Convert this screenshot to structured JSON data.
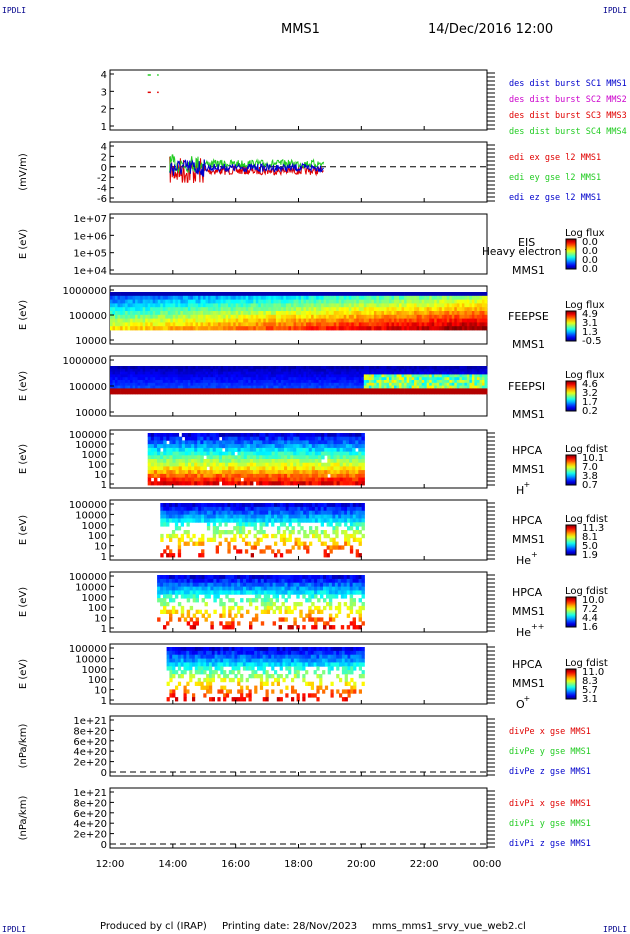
{
  "corner_label": "IPDLI",
  "header": {
    "spacecraft": "MMS1",
    "datetime": "14/Dec/2016 12:00"
  },
  "footer": {
    "produced_by": "Produced by cl (IRAP)",
    "printing_date": "Printing date: 28/Nov/2023",
    "filename": "mms_mms1_srvy_vue_web2.cl"
  },
  "colors": {
    "red": "#e00000",
    "green": "#22cc22",
    "blue": "#0000cc",
    "magenta": "#cc00cc"
  },
  "chart_data": {
    "type": "line",
    "x_ticks": [
      "12:00",
      "14:00",
      "16:00",
      "18:00",
      "20:00",
      "22:00",
      "00:00"
    ],
    "x_range_hours": [
      12,
      24
    ],
    "panels": [
      {
        "kind": "flags",
        "yticks": [
          "4",
          "3",
          "2",
          "1"
        ],
        "ylabel": "",
        "series": [
          {
            "name": "des dist burst SC1 MMS1",
            "color": "#0000cc",
            "level": 4,
            "segments": []
          },
          {
            "name": "des dist burst SC2 MMS2",
            "color": "#cc00cc",
            "level": 3,
            "segments": []
          },
          {
            "name": "des dist burst SC3 MMS3",
            "color": "#e00000",
            "level": 3,
            "segments": [
              [
                13.2,
                13.3
              ],
              [
                13.5,
                13.55
              ]
            ]
          },
          {
            "name": "des dist burst SC4 MMS4",
            "color": "#22cc22",
            "level": 4,
            "segments": [
              [
                13.2,
                13.3
              ],
              [
                13.5,
                13.55
              ]
            ]
          }
        ]
      },
      {
        "kind": "efield",
        "yticks": [
          "4",
          "2",
          "0",
          "-2",
          "-4",
          "-6"
        ],
        "ylabel": "(mV/m)",
        "active_hours": [
          13.9,
          18.8
        ],
        "series": [
          {
            "name": "edi ex gse l2 MMS1",
            "color": "#e00000"
          },
          {
            "name": "edi ey gse l2 MMS1",
            "color": "#22cc22"
          },
          {
            "name": "edi ez gse l2 MMS1",
            "color": "#0000cc"
          }
        ]
      },
      {
        "kind": "spec_empty",
        "yticks": [
          "1e+07",
          "1e+06",
          "1e+05",
          "1e+04"
        ],
        "ylabel": "E (eV)",
        "labels": [
          "EIS",
          "MMS1"
        ],
        "overlay": "Heavy electron to",
        "cbar_title": "Log flux",
        "cbar_ticks": [
          "0.0",
          "0.0",
          "0.0",
          "0.0"
        ]
      },
      {
        "kind": "feeps_e",
        "yticks": [
          "1000000",
          "100000",
          "10000"
        ],
        "ylabel": "E (eV)",
        "labels": [
          "FEEPSE",
          "MMS1"
        ],
        "cbar_title": "Log flux",
        "cbar_ticks": [
          "4.9",
          "3.1",
          "1.3",
          "-0.5"
        ]
      },
      {
        "kind": "feeps_i",
        "yticks": [
          "1000000",
          "100000",
          "10000"
        ],
        "ylabel": "E (eV)",
        "labels": [
          "FEEPSI",
          "MMS1"
        ],
        "cbar_title": "Log flux",
        "cbar_ticks": [
          "4.6",
          "3.2",
          "1.7",
          "0.2"
        ]
      },
      {
        "kind": "hpca",
        "yticks": [
          "100000",
          "10000",
          "1000",
          "100",
          "10",
          "1"
        ],
        "ylabel": "E (eV)",
        "labels": [
          "HPCA",
          "MMS1"
        ],
        "species": "H",
        "species_sup": "+",
        "cbar_title": "Log fdist",
        "cbar_ticks": [
          "10.1",
          "7.0",
          "3.8",
          "0.7"
        ],
        "start_hour": 13.2
      },
      {
        "kind": "hpca",
        "yticks": [
          "100000",
          "10000",
          "1000",
          "100",
          "10",
          "1"
        ],
        "ylabel": "E (eV)",
        "labels": [
          "HPCA",
          "MMS1"
        ],
        "species": "He",
        "species_sup": "+",
        "cbar_title": "Log fdist",
        "cbar_ticks": [
          "11.3",
          "8.1",
          "5.0",
          "1.9"
        ],
        "start_hour": 13.6
      },
      {
        "kind": "hpca",
        "yticks": [
          "100000",
          "10000",
          "1000",
          "100",
          "10",
          "1"
        ],
        "ylabel": "E (eV)",
        "labels": [
          "HPCA",
          "MMS1"
        ],
        "species": "He",
        "species_sup": "++",
        "cbar_title": "Log fdist",
        "cbar_ticks": [
          "10.0",
          "7.2",
          "4.4",
          "1.6"
        ],
        "start_hour": 13.5
      },
      {
        "kind": "hpca",
        "yticks": [
          "100000",
          "10000",
          "1000",
          "100",
          "10",
          "1"
        ],
        "ylabel": "E (eV)",
        "labels": [
          "HPCA",
          "MMS1"
        ],
        "species": "O",
        "species_sup": "+",
        "cbar_title": "Log fdist",
        "cbar_ticks": [
          "11.0",
          "8.3",
          "5.7",
          "3.1"
        ],
        "start_hour": 13.8
      },
      {
        "kind": "divp",
        "yticks": [
          "1e+21",
          "8e+20",
          "6e+20",
          "4e+20",
          "2e+20",
          "0"
        ],
        "ylabel": "(nPa/km)",
        "series": [
          {
            "name": "divPe x gse MMS1",
            "color": "#e00000"
          },
          {
            "name": "divPe y gse MMS1",
            "color": "#22cc22"
          },
          {
            "name": "divPe z gse MMS1",
            "color": "#0000cc"
          }
        ]
      },
      {
        "kind": "divp",
        "yticks": [
          "1e+21",
          "8e+20",
          "6e+20",
          "4e+20",
          "2e+20",
          "0"
        ],
        "ylabel": "(nPa/km)",
        "series": [
          {
            "name": "divPi x gse MMS1",
            "color": "#e00000"
          },
          {
            "name": "divPi y gse MMS1",
            "color": "#22cc22"
          },
          {
            "name": "divPi z gse MMS1",
            "color": "#0000cc"
          }
        ]
      }
    ]
  }
}
